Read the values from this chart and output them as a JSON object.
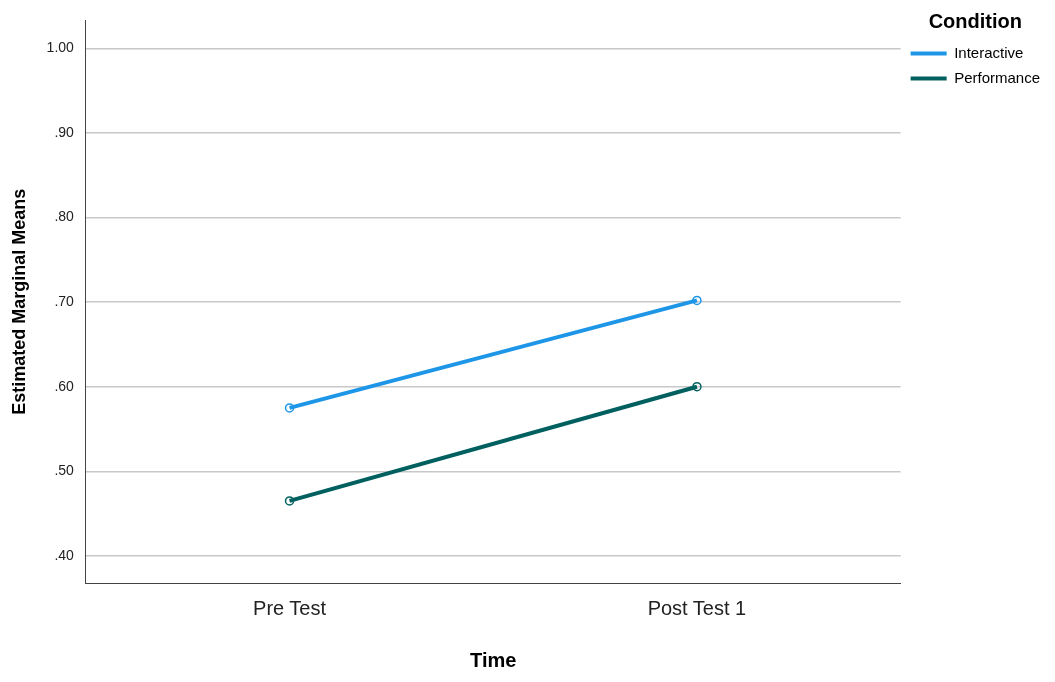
{
  "chart_data": {
    "type": "line",
    "xlabel": "Time",
    "ylabel": "Estimated Marginal Means",
    "legend_title": "Condition",
    "categories": [
      "Pre Test",
      "Post Test 1"
    ],
    "series": [
      {
        "name": "Interactive",
        "color": "#1e96e8",
        "values": [
          0.575,
          0.702
        ]
      },
      {
        "name": "Performance",
        "color": "#006060",
        "values": [
          0.465,
          0.6
        ]
      }
    ],
    "ylim": [
      0.368,
      1.033
    ],
    "yticks": [
      {
        "value": 0.4,
        "label": ".40"
      },
      {
        "value": 0.5,
        "label": ".50"
      },
      {
        "value": 0.6,
        "label": ".60"
      },
      {
        "value": 0.7,
        "label": ".70"
      },
      {
        "value": 0.8,
        "label": ".80"
      },
      {
        "value": 0.9,
        "label": ".90"
      },
      {
        "value": 1.0,
        "label": "1.00"
      }
    ],
    "grid": "y",
    "legend": "top right",
    "marker": "circle",
    "line_style": "solid"
  }
}
